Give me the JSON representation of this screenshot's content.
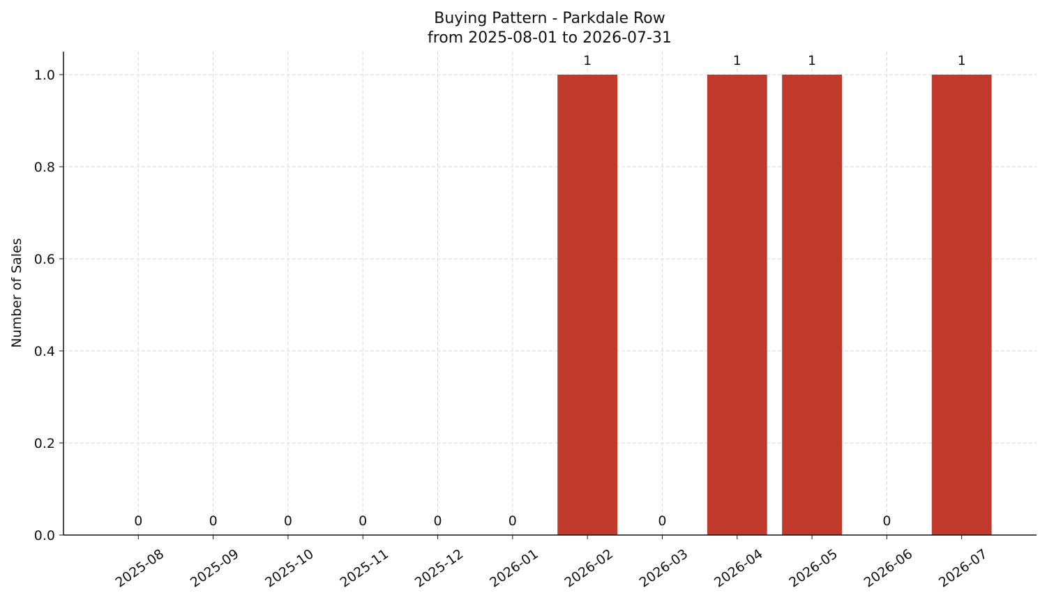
{
  "chart_data": {
    "type": "bar",
    "title": "Buying Pattern - Parkdale Row",
    "subtitle": "from 2025-08-01 to 2026-07-31",
    "y_label": "Number of Sales",
    "categories": [
      "2025-08",
      "2025-09",
      "2025-10",
      "2025-11",
      "2025-12",
      "2026-01",
      "2026-02",
      "2026-03",
      "2026-04",
      "2026-05",
      "2026-06",
      "2026-07"
    ],
    "values": [
      0,
      0,
      0,
      0,
      0,
      0,
      1,
      0,
      1,
      1,
      0,
      1
    ],
    "color": "#c0392b",
    "ylim": [
      0,
      1.05
    ],
    "yticks": [
      {
        "value": 0,
        "label": "0.0"
      },
      0.2,
      0.4,
      0.6,
      0.8,
      {
        "value": 1,
        "label": "1.0"
      }
    ],
    "grid": true
  }
}
